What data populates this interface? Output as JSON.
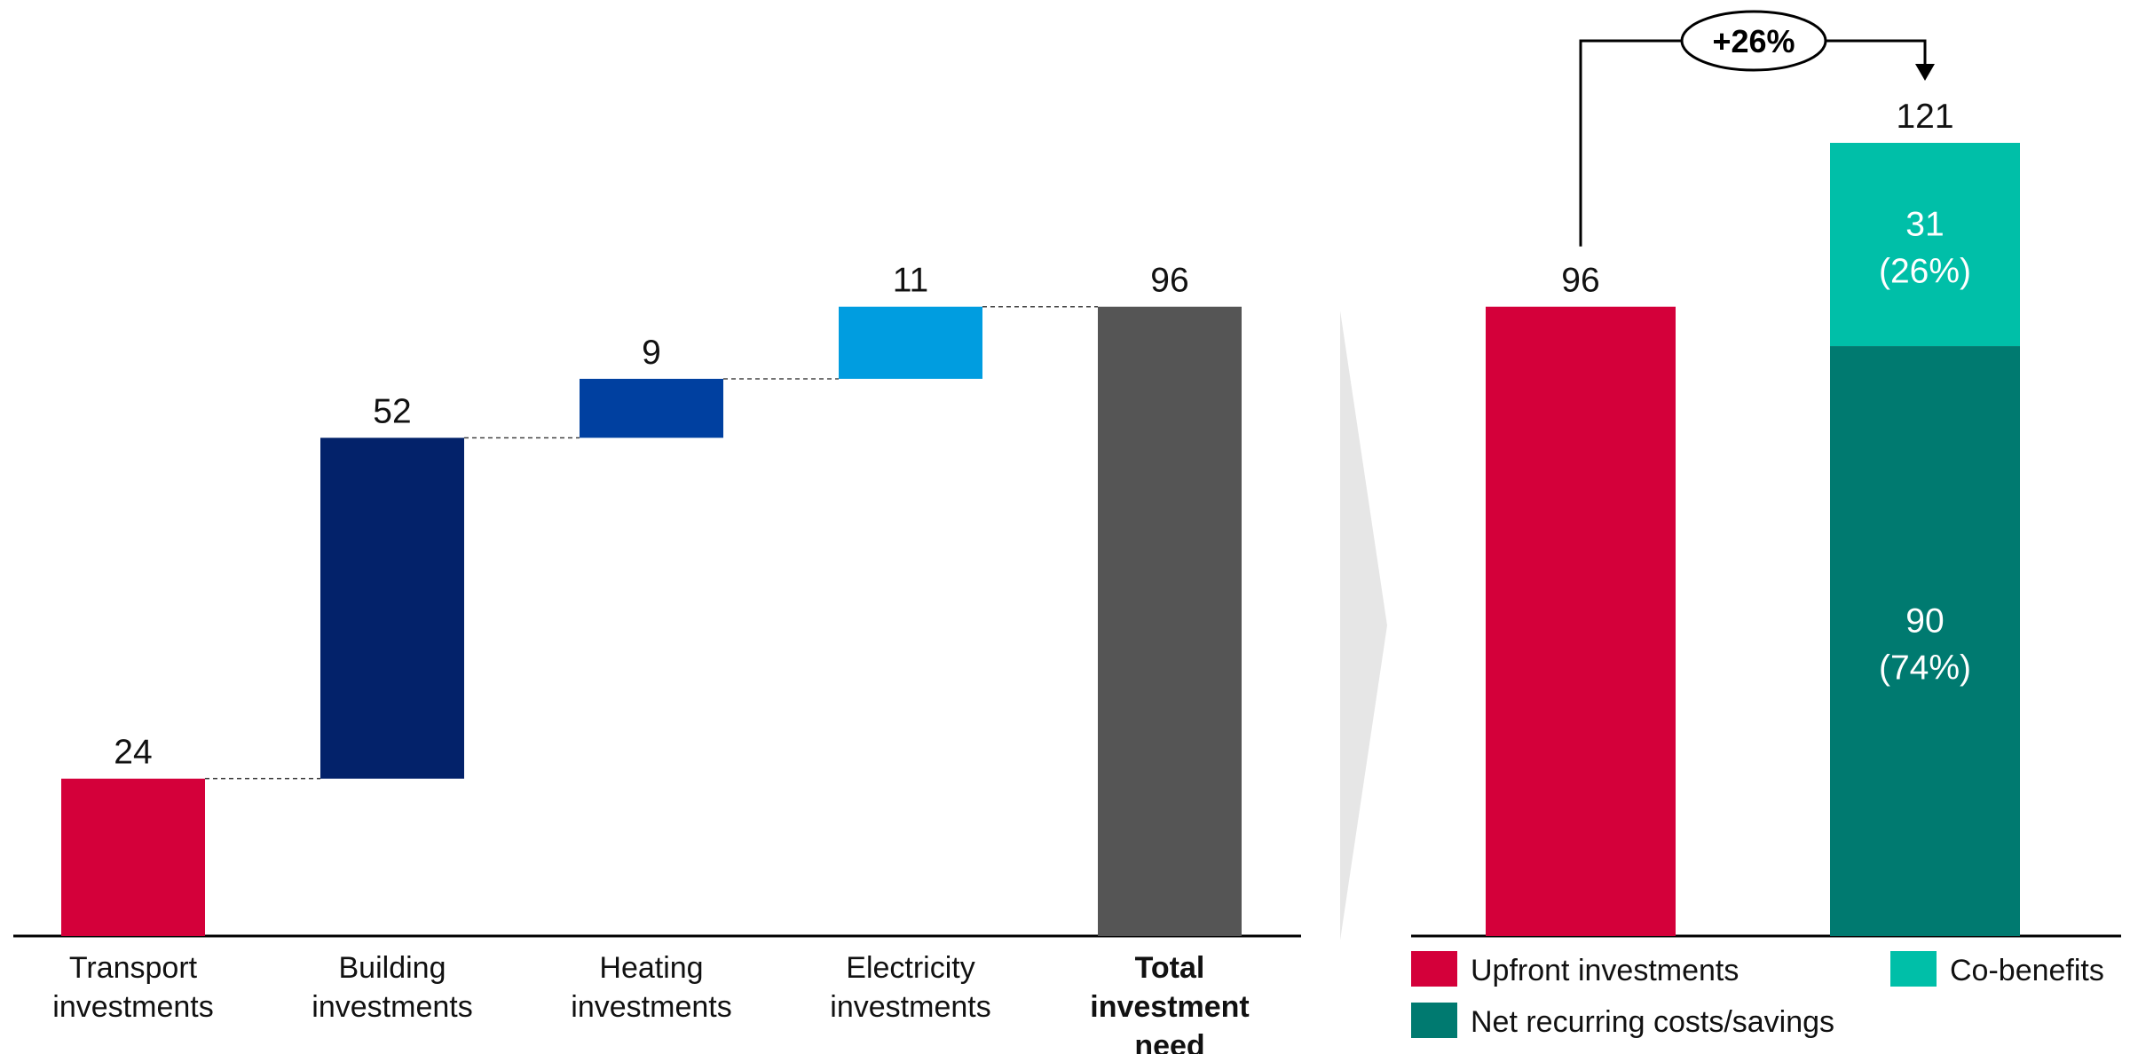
{
  "chart_data": [
    {
      "type": "waterfall",
      "categories": [
        "Transport\ninvestments",
        "Building\ninvestments",
        "Heating\ninvestments",
        "Electricity\ninvestments",
        "Total\ninvestment\nneed"
      ],
      "values": [
        24,
        52,
        9,
        11,
        96
      ],
      "labels": [
        "24",
        "52",
        "9",
        "11",
        "96"
      ],
      "colors": [
        "#d4003a",
        "#03226a",
        "#0040a0",
        "#009de0",
        "#555555"
      ],
      "total_index": 4,
      "ylim": [
        0,
        121
      ]
    },
    {
      "type": "bar",
      "stacked": true,
      "bars": [
        {
          "total_label": "96",
          "segments": [
            {
              "name": "Upfront investments",
              "value": 96,
              "color": "#d4003a",
              "label": ""
            }
          ]
        },
        {
          "total_label": "121",
          "segments": [
            {
              "name": "Net recurring costs/savings",
              "value": 90,
              "color": "#007a70",
              "label": "90\n(74%)"
            },
            {
              "name": "Co-benefits",
              "value": 31,
              "color": "#00bfa8",
              "label": "31\n(26%)"
            }
          ]
        }
      ],
      "annotation": "+26%",
      "legend": [
        {
          "name": "Upfront investments",
          "color": "#d4003a"
        },
        {
          "name": "Co-benefits",
          "color": "#00bfa8"
        },
        {
          "name": "Net recurring costs/savings",
          "color": "#007a70"
        }
      ],
      "legend_position": "bottom",
      "ylim": [
        0,
        121
      ]
    }
  ]
}
